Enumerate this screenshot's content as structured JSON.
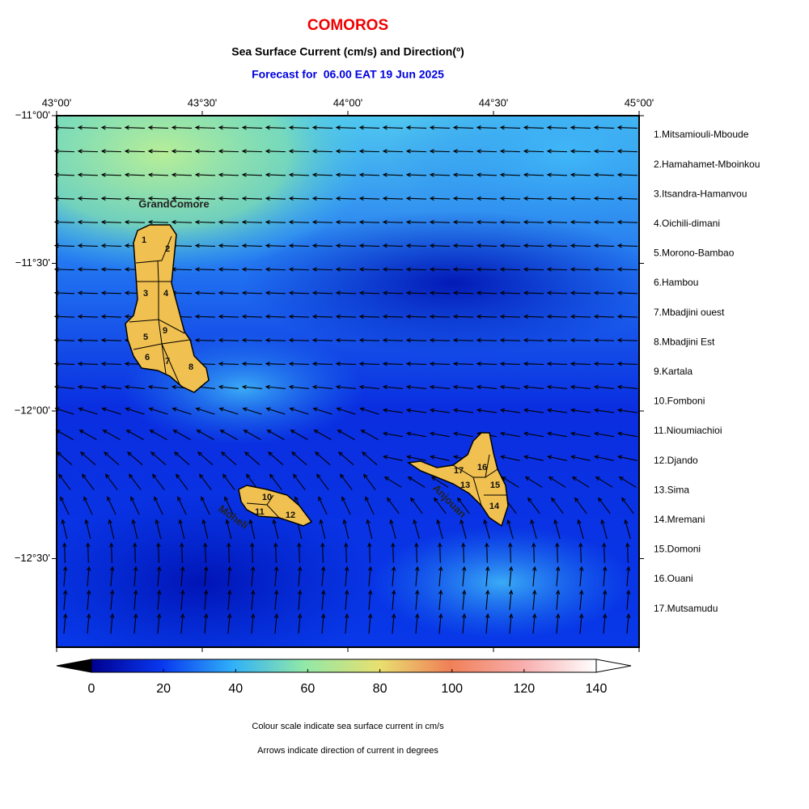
{
  "title": "COMOROS",
  "subtitle": "Sea Surface Current (cm/s) and Direction(º)",
  "forecast": "Forecast for  06.00 EAT 19 Jun 2025",
  "map": {
    "xlim": [
      43,
      45
    ],
    "ylim": [
      -12.8,
      -11
    ],
    "xticks": [
      {
        "value": 43,
        "label": "43°00'"
      },
      {
        "value": 43.5,
        "label": "43°30'"
      },
      {
        "value": 44,
        "label": "44°00'"
      },
      {
        "value": 44.5,
        "label": "44°30'"
      },
      {
        "value": 45,
        "label": "45°00'"
      }
    ],
    "yticks": [
      {
        "value": -11,
        "label": "−11°00'"
      },
      {
        "value": -11.5,
        "label": "−11°30'"
      },
      {
        "value": -12,
        "label": "−12°00'"
      },
      {
        "value": -12.5,
        "label": "−12°30'"
      }
    ],
    "island_labels": [
      "GrandComore",
      "Moheli",
      "Anjouan"
    ],
    "region_numbers": [
      "1",
      "2",
      "3",
      "4",
      "5",
      "6",
      "7",
      "8",
      "9",
      "10",
      "11",
      "12",
      "13",
      "14",
      "15",
      "16",
      "17"
    ]
  },
  "legend": [
    "1.Mitsamiouli-Mboude",
    "2.Hamahamet-Mboinkou",
    "3.Itsandra-Hamanvou",
    "4.Oichili-dimani",
    "5.Morono-Bambao",
    "6.Hambou",
    "7.Mbadjini ouest",
    "8.Mbadjini Est",
    "9.Kartala",
    "10.Fomboni",
    "11.Nioumiachioi",
    "12.Djando",
    "13.Sima",
    "14.Mremani",
    "15.Domoni",
    "16.Ouani",
    "17.Mutsamudu"
  ],
  "colorbar": {
    "lim": [
      0,
      140
    ],
    "ticks": [
      0,
      20,
      40,
      60,
      80,
      100,
      120,
      140
    ]
  },
  "notes": [
    "Colour scale indicate sea surface current in cm/s",
    "Arrows indicate direction of current in degrees"
  ]
}
